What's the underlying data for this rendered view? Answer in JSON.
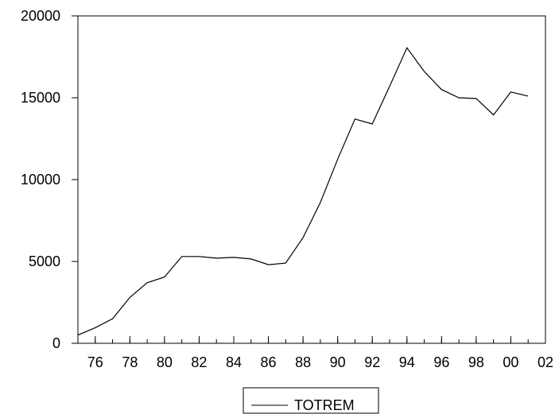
{
  "chart_data": {
    "type": "line",
    "title": "",
    "xlabel": "",
    "ylabel": "",
    "x": [
      1975,
      1976,
      1977,
      1978,
      1979,
      1980,
      1981,
      1982,
      1983,
      1984,
      1985,
      1986,
      1987,
      1988,
      1989,
      1990,
      1991,
      1992,
      1993,
      1994,
      1995,
      1996,
      1997,
      1998,
      1999,
      2000,
      2001
    ],
    "series": [
      {
        "name": "TOTREM",
        "values": [
          500,
          950,
          1500,
          2800,
          3700,
          4050,
          5300,
          5300,
          5200,
          5250,
          5150,
          4800,
          4900,
          6450,
          8600,
          11250,
          13700,
          13400,
          15700,
          18050,
          16600,
          15500,
          15000,
          14950,
          13950,
          15350,
          15100
        ]
      }
    ],
    "xlim": [
      1975,
      2002
    ],
    "ylim": [
      0,
      20000
    ],
    "x_ticks": [
      "76",
      "78",
      "80",
      "82",
      "84",
      "86",
      "88",
      "90",
      "92",
      "94",
      "96",
      "98",
      "00",
      "02"
    ],
    "x_tick_values": [
      1976,
      1978,
      1980,
      1982,
      1984,
      1986,
      1988,
      1990,
      1992,
      1994,
      1996,
      1998,
      2000,
      2002
    ],
    "y_ticks": [
      "0",
      "5000",
      "10000",
      "15000",
      "20000"
    ],
    "y_tick_values": [
      0,
      5000,
      10000,
      15000,
      20000
    ],
    "grid": false,
    "legend_position": "bottom-center",
    "line_color": "#000000"
  }
}
